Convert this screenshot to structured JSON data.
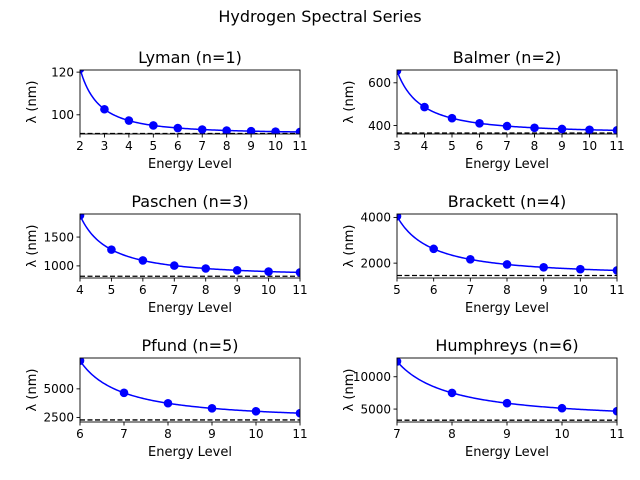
{
  "figure_title": "Hydrogen Spectral Series",
  "colors": {
    "curve": "#0000ff",
    "marker": "#0000ff",
    "limit_line": "#000000"
  },
  "chart_data": [
    {
      "type": "line",
      "title": "Lyman (n=1)",
      "xlabel": "Energy Level",
      "ylabel": "λ (nm)",
      "n_lower": 1,
      "xlim": [
        2,
        11
      ],
      "ylim": [
        91,
        121
      ],
      "xticks": [
        2,
        3,
        4,
        5,
        6,
        7,
        8,
        9,
        10,
        11
      ],
      "yticks": [
        100,
        120
      ],
      "series_limit": 91.2,
      "points": {
        "x": [
          2,
          3,
          4,
          5,
          6,
          7,
          8,
          9,
          10,
          11
        ],
        "y": [
          121.5,
          102.6,
          97.3,
          95.0,
          93.8,
          93.1,
          92.6,
          92.3,
          92.1,
          92.0
        ]
      },
      "grid": false
    },
    {
      "type": "line",
      "title": "Balmer (n=2)",
      "xlabel": "Energy Level",
      "ylabel": "λ (nm)",
      "n_lower": 2,
      "xlim": [
        3,
        11
      ],
      "ylim": [
        360,
        660
      ],
      "xticks": [
        3,
        4,
        5,
        6,
        7,
        8,
        9,
        10,
        11
      ],
      "yticks": [
        400,
        600
      ],
      "series_limit": 364.6,
      "points": {
        "x": [
          3,
          4,
          5,
          6,
          7,
          8,
          9,
          10,
          11
        ],
        "y": [
          656.3,
          486.1,
          434.0,
          410.2,
          397.0,
          388.9,
          383.5,
          379.8,
          377.1
        ]
      },
      "grid": false
    },
    {
      "type": "line",
      "title": "Paschen (n=3)",
      "xlabel": "Energy Level",
      "ylabel": "λ (nm)",
      "n_lower": 3,
      "xlim": [
        4,
        11
      ],
      "ylim": [
        790,
        1900
      ],
      "xticks": [
        4,
        5,
        6,
        7,
        8,
        9,
        10,
        11
      ],
      "yticks": [
        1000,
        1500
      ],
      "series_limit": 820.4,
      "points": {
        "x": [
          4,
          5,
          6,
          7,
          8,
          9,
          10,
          11
        ],
        "y": [
          1875,
          1282,
          1094,
          1005,
          954.6,
          922.9,
          901.5,
          886.3
        ]
      },
      "grid": false
    },
    {
      "type": "line",
      "title": "Brackett (n=4)",
      "xlabel": "Energy Level",
      "ylabel": "λ (nm)",
      "n_lower": 4,
      "xlim": [
        5,
        11
      ],
      "ylim": [
        1350,
        4150
      ],
      "xticks": [
        5,
        6,
        7,
        8,
        9,
        10,
        11
      ],
      "yticks": [
        2000,
        4000
      ],
      "series_limit": 1458,
      "points": {
        "x": [
          5,
          6,
          7,
          8,
          9,
          10,
          11
        ],
        "y": [
          4051,
          2625,
          2166,
          1944,
          1817,
          1736,
          1681
        ]
      },
      "grid": false
    },
    {
      "type": "line",
      "title": "Pfund (n=5)",
      "xlabel": "Energy Level",
      "ylabel": "λ (nm)",
      "n_lower": 5,
      "xlim": [
        6,
        11
      ],
      "ylim": [
        2100,
        7700
      ],
      "xticks": [
        6,
        7,
        8,
        9,
        10,
        11
      ],
      "yticks": [
        2500,
        5000
      ],
      "series_limit": 2279,
      "points": {
        "x": [
          6,
          7,
          8,
          9,
          10,
          11
        ],
        "y": [
          7460,
          4654,
          3741,
          3297,
          3039,
          2873
        ]
      },
      "grid": false
    },
    {
      "type": "line",
      "title": "Humphreys (n=6)",
      "xlabel": "Energy Level",
      "ylabel": "λ (nm)",
      "n_lower": 6,
      "xlim": [
        7,
        11
      ],
      "ylim": [
        3000,
        12900
      ],
      "xticks": [
        7,
        8,
        9,
        10,
        11
      ],
      "yticks": [
        5000,
        10000
      ],
      "series_limit": 3282,
      "points": {
        "x": [
          7,
          8,
          9,
          10,
          11
        ],
        "y": [
          12370,
          7503,
          5908,
          5129,
          4673
        ]
      },
      "grid": false
    }
  ]
}
